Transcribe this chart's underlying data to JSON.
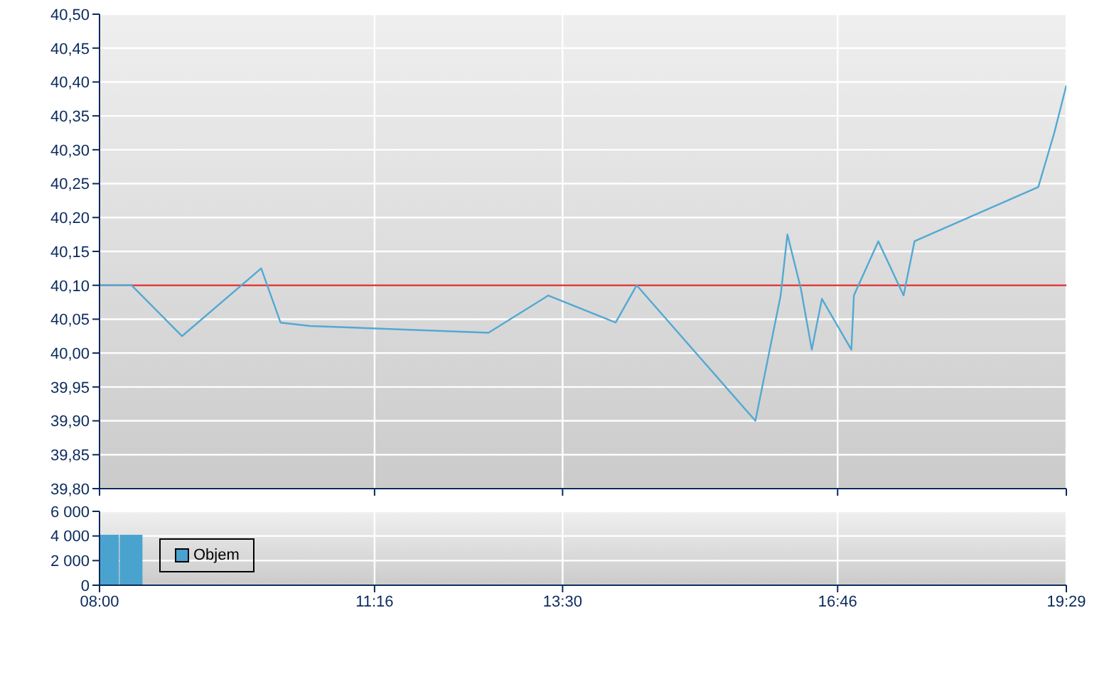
{
  "chart_data": [
    {
      "type": "line",
      "x": [
        8.0,
        8.38,
        8.98,
        9.92,
        10.15,
        10.5,
        12.62,
        13.33,
        14.13,
        14.38,
        15.79,
        16.09,
        16.17,
        16.33,
        16.46,
        16.58,
        16.93,
        16.96,
        17.25,
        17.55,
        17.68,
        19.15,
        19.34,
        19.4833
      ],
      "series": [
        {
          "color": "#52a9d3",
          "values": [
            40.1,
            40.1,
            40.025,
            40.125,
            40.045,
            40.04,
            40.03,
            40.085,
            40.045,
            40.1,
            39.9,
            40.085,
            40.175,
            40.095,
            40.005,
            40.08,
            40.005,
            40.085,
            40.165,
            40.085,
            40.165,
            40.245,
            40.325,
            40.395
          ]
        }
      ],
      "xlim": [
        8,
        19.4833
      ],
      "xticks": [
        {
          "value": 8,
          "label": null
        },
        {
          "value": 11.2667,
          "label": null
        },
        {
          "value": 13.5,
          "label": null
        },
        {
          "value": 16.7667,
          "label": null
        },
        {
          "value": 19.4833,
          "label": null
        }
      ],
      "ylim": [
        39.8,
        40.5
      ],
      "yticks": [
        {
          "value": 39.8,
          "label": "39,80"
        },
        {
          "value": 39.85,
          "label": "39,85"
        },
        {
          "value": 39.9,
          "label": "39,90"
        },
        {
          "value": 39.95,
          "label": "39,95"
        },
        {
          "value": 40.0,
          "label": "40,00"
        },
        {
          "value": 40.05,
          "label": "40,05"
        },
        {
          "value": 40.1,
          "label": "40,10"
        },
        {
          "value": 40.15,
          "label": "40,15"
        },
        {
          "value": 40.2,
          "label": "40,20"
        },
        {
          "value": 40.25,
          "label": "40,25"
        },
        {
          "value": 40.3,
          "label": "40,30"
        },
        {
          "value": 40.35,
          "label": "40,35"
        },
        {
          "value": 40.4,
          "label": "40,40"
        },
        {
          "value": 40.45,
          "label": "40,45"
        },
        {
          "value": 40.5,
          "label": "40,50"
        }
      ],
      "ref_lines": [
        {
          "axis": "y",
          "value": 40.1,
          "color": "#e03c3c"
        }
      ],
      "grid": true,
      "legend": false,
      "tick_labels": "y"
    },
    {
      "type": "bar",
      "x": [
        8.1,
        8.38
      ],
      "series": [
        {
          "name": "Objem",
          "color": "#4aa3cf",
          "values": [
            4100,
            4100
          ]
        }
      ],
      "xlim": [
        8,
        19.4833
      ],
      "xticks": [
        {
          "value": 8,
          "label": "08:00"
        },
        {
          "value": 11.2667,
          "label": "11:16"
        },
        {
          "value": 13.5,
          "label": "13:30"
        },
        {
          "value": 16.7667,
          "label": "16:46"
        },
        {
          "value": 19.4833,
          "label": "19:29"
        }
      ],
      "ylim": [
        0,
        6000
      ],
      "yticks": [
        0,
        {
          "value": 2000,
          "label": "2 000"
        },
        {
          "value": 4000,
          "label": "4 000"
        },
        {
          "value": 6000,
          "label": "6 000"
        }
      ],
      "grid": true,
      "legend": "left"
    }
  ]
}
